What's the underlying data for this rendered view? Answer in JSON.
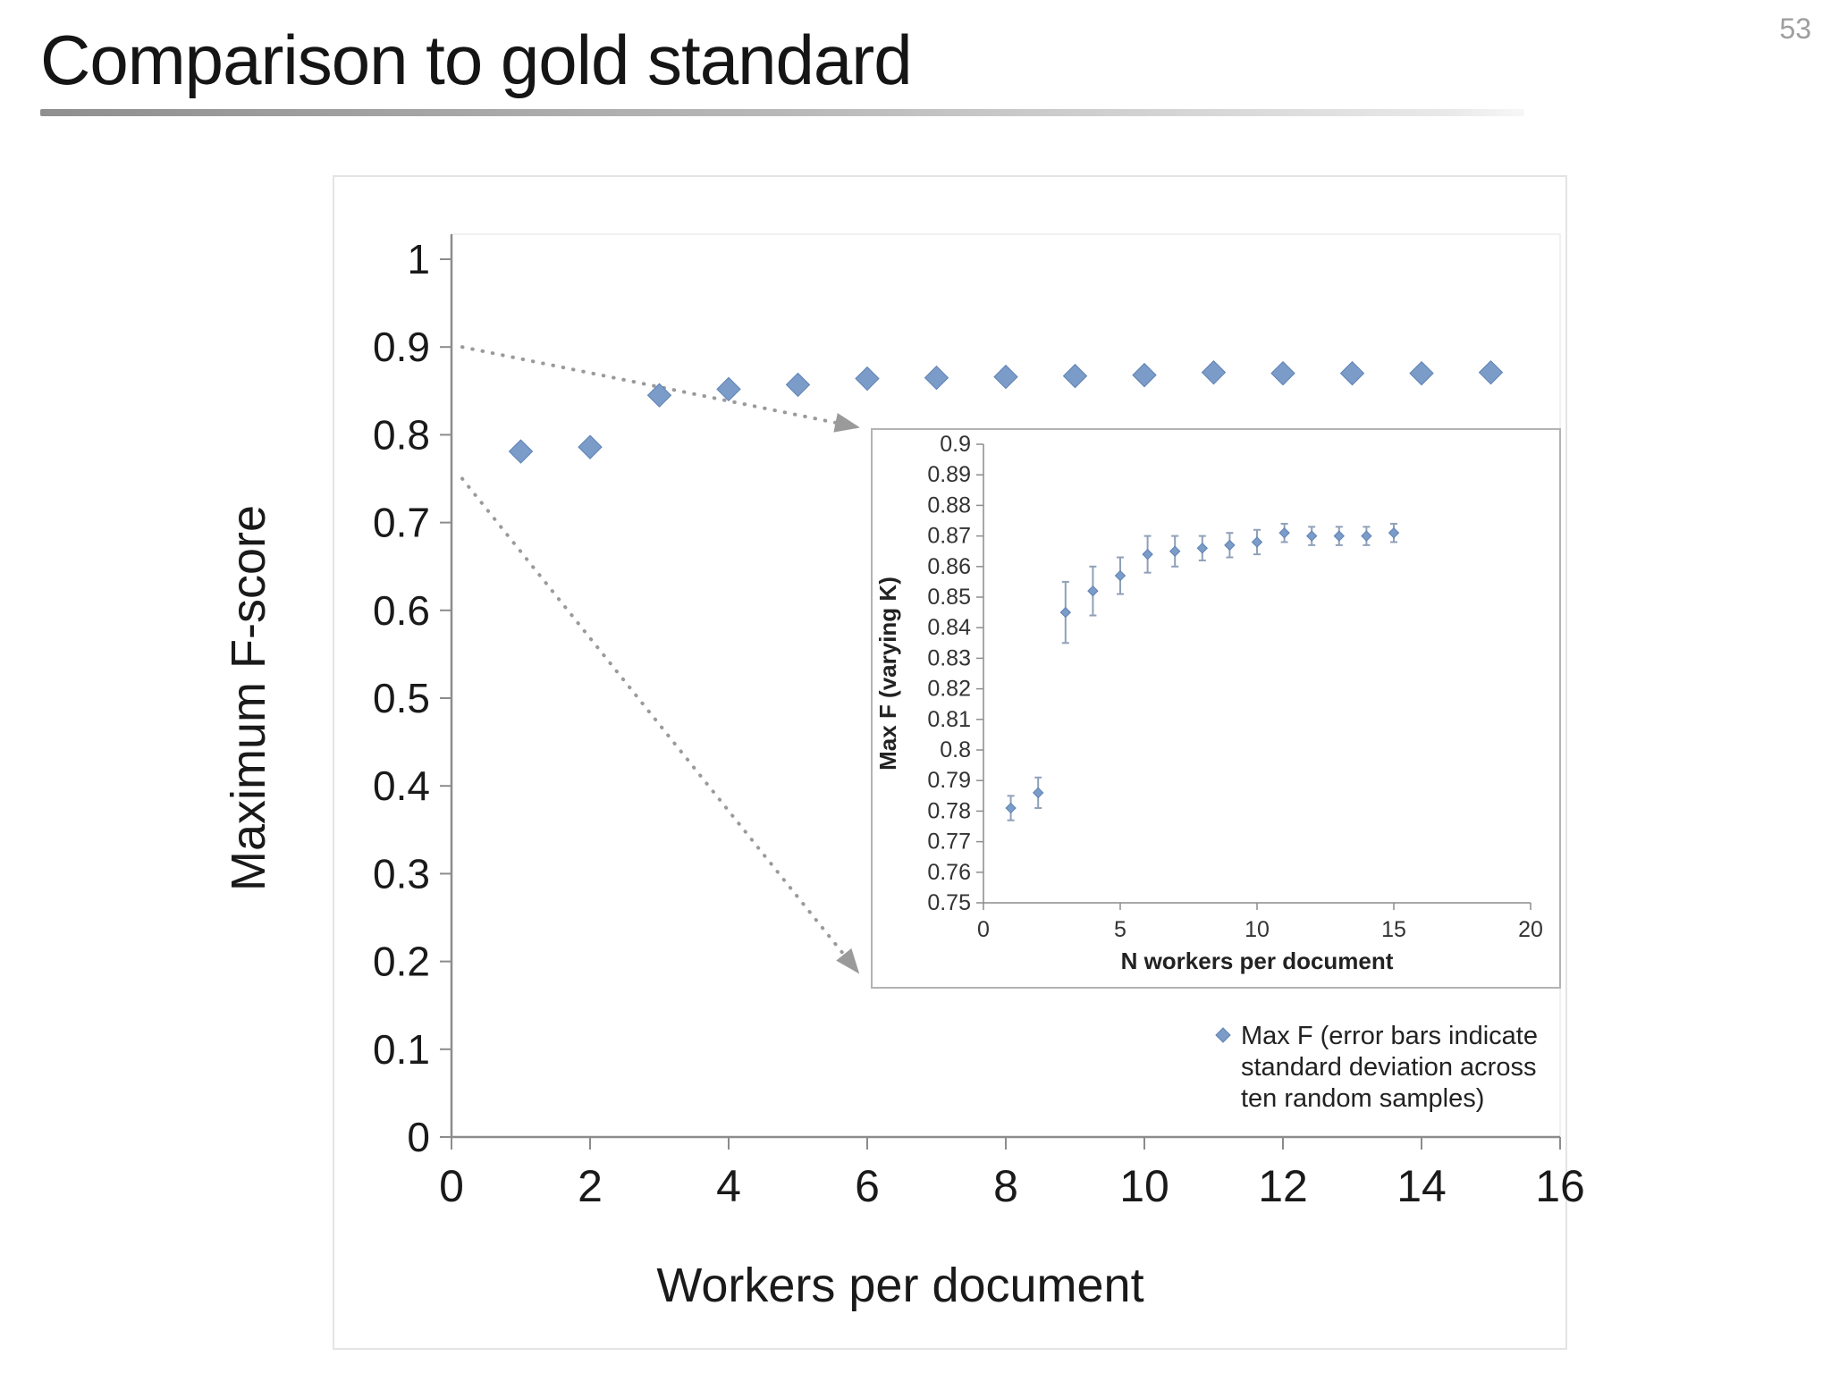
{
  "page": {
    "slide_number": "53",
    "title": "Comparison to gold standard"
  },
  "colors": {
    "marker": "#7b9bc8",
    "marker_edge": "#5f82b4",
    "error_bar": "#90a0b8",
    "axis": "#8c8c8c",
    "callout": "#9a9a9a",
    "tick_text_main": "#1a1a1a",
    "tick_text_inset": "#333333"
  },
  "chart_data": {
    "type": "scatter",
    "main": {
      "xlabel": "Workers per document",
      "ylabel": "Maximum F-score",
      "xlim": [
        0,
        16
      ],
      "ylim": [
        0,
        1
      ],
      "xticks": [
        0,
        2,
        4,
        6,
        8,
        10,
        12,
        14,
        16
      ],
      "yticks": [
        0,
        0.1,
        0.2,
        0.3,
        0.4,
        0.5,
        0.6,
        0.7,
        0.8,
        0.9,
        1
      ],
      "marker": "diamond",
      "grid": false,
      "x": [
        1,
        2,
        3,
        4,
        5,
        6,
        7,
        8,
        9,
        10,
        11,
        12,
        13,
        14,
        15
      ],
      "y": [
        0.781,
        0.786,
        0.845,
        0.852,
        0.857,
        0.864,
        0.865,
        0.866,
        0.867,
        0.868,
        0.871,
        0.87,
        0.87,
        0.87,
        0.871
      ]
    },
    "inset": {
      "xlabel": "N workers per document",
      "ylabel": "Max F (varying K)",
      "xlim": [
        0,
        20
      ],
      "ylim": [
        0.75,
        0.9
      ],
      "xticks": [
        0,
        5,
        10,
        15,
        20
      ],
      "yticks": [
        0.75,
        0.76,
        0.77,
        0.78,
        0.79,
        0.8,
        0.81,
        0.82,
        0.83,
        0.84,
        0.85,
        0.86,
        0.87,
        0.88,
        0.89,
        0.9
      ],
      "zoom_range_shown": [
        0.75,
        0.9
      ],
      "x": [
        1,
        2,
        3,
        4,
        5,
        6,
        7,
        8,
        9,
        10,
        11,
        12,
        13,
        14,
        15
      ],
      "y": [
        0.781,
        0.786,
        0.845,
        0.852,
        0.857,
        0.864,
        0.865,
        0.866,
        0.867,
        0.868,
        0.871,
        0.87,
        0.87,
        0.87,
        0.871
      ],
      "yerr": [
        0.004,
        0.005,
        0.01,
        0.008,
        0.006,
        0.006,
        0.005,
        0.004,
        0.004,
        0.004,
        0.003,
        0.003,
        0.003,
        0.003,
        0.003
      ]
    },
    "legend": {
      "position": "below-inset-right",
      "lines": [
        "Max F (error bars indicate",
        "standard deviation across",
        "ten random samples)"
      ]
    }
  }
}
